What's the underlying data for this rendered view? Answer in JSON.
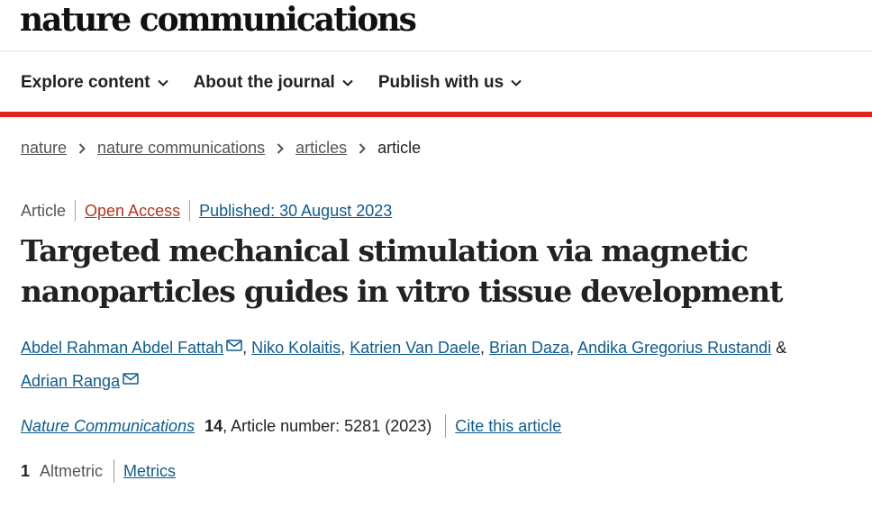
{
  "header": {
    "logo": "nature communications"
  },
  "nav": [
    {
      "label": "Explore content"
    },
    {
      "label": "About the journal"
    },
    {
      "label": "Publish with us"
    }
  ],
  "breadcrumb": [
    "nature",
    "nature communications",
    "articles",
    "article"
  ],
  "article": {
    "type": "Article",
    "access": "Open Access",
    "published": "Published: 30 August 2023",
    "title": "Targeted mechanical stimulation via magnetic nanoparticles guides in vitro tissue development",
    "authors": [
      "Abdel Rahman Abdel Fattah",
      "Niko Kolaitis",
      "Katrien Van Daele",
      "Brian Daza",
      "Andika Gregorius Rustandi",
      "Adrian Ranga"
    ],
    "and_symbol": "&",
    "journal": "Nature Communications",
    "volume": "14",
    "article_number": ", Article number: 5281 (2023)",
    "cite_label": "Cite this article",
    "altmetric_count": "1",
    "altmetric_label": "Altmetric",
    "metrics_label": "Metrics"
  },
  "colors": {
    "accent_red": "#e1261c",
    "link_blue": "#0f5b8f",
    "open_access": "#b8351f"
  },
  "icons": {
    "nav_chevron": "chevron-down-icon",
    "breadcrumb_separator": "chevron-right-icon",
    "author_contact": "envelope-icon"
  }
}
